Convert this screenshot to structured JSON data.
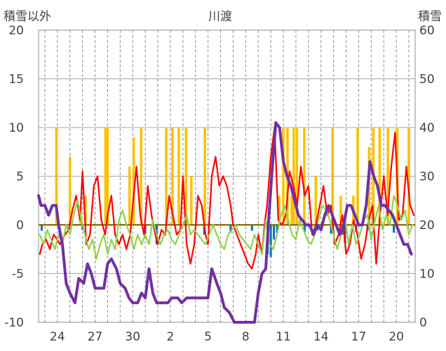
{
  "chart_data": {
    "type": "line",
    "title": "川渡",
    "y_left_label": "積雪以外",
    "y_right_label": "積雪",
    "y_left_ticks": [
      "20",
      "15",
      "10",
      "5",
      "0",
      "-5",
      "-10"
    ],
    "y_right_ticks": [
      "60",
      "50",
      "40",
      "30",
      "20",
      "10",
      "0"
    ],
    "x_ticks": [
      "24",
      "27",
      "30",
      "2",
      "5",
      "8",
      "11",
      "14",
      "17",
      "20"
    ],
    "ylim_left": [
      -10,
      20
    ],
    "ylim_right": [
      0,
      60
    ],
    "x_range_days": [
      22,
      52
    ],
    "x_tick_positions": [
      23.5,
      26.5,
      29.5,
      32.5,
      35.5,
      38.5,
      41.5,
      44.5,
      47.5,
      50.5
    ],
    "grid": true,
    "legend": "none",
    "colors": {
      "precipitation": "#FFC000",
      "temperature": "#FF0000",
      "wind": "#92D050",
      "sunshine": "#0070C0",
      "snow_depth": "#7030A0",
      "zero_line": "#7F6000"
    },
    "series": [
      {
        "key": "precipitation",
        "kind": "bar",
        "axis": "left",
        "x": [
          23.42,
          24.5,
          25.33,
          25.75,
          27.33,
          27.5,
          29.25,
          29.58,
          30.17,
          32.17,
          32.67,
          33.17,
          33.75,
          34.17,
          35.25,
          41.17,
          41.5,
          41.83,
          42.17,
          42.33,
          42.58,
          43.17,
          44.08,
          45.42,
          46.08,
          47.08,
          47.42,
          48.33,
          48.67,
          49.17,
          49.83,
          50.58,
          51.5
        ],
        "values": [
          10,
          7,
          2,
          3,
          10,
          10,
          6,
          9,
          10,
          10,
          10,
          10,
          10,
          5,
          10,
          3,
          10,
          10,
          3,
          10,
          10,
          10,
          5,
          10,
          3,
          3,
          10,
          8,
          10,
          10,
          10,
          10,
          10
        ]
      },
      {
        "key": "sunshine",
        "kind": "bar",
        "axis": "left",
        "x": [
          22.25,
          25.5,
          30.5,
          31.4,
          35.2,
          37.3,
          39.0,
          40.25,
          40.5,
          40.75,
          41.0,
          43.2,
          44.2,
          45.3,
          46.2,
          46.4,
          47.3,
          48.2,
          50.3
        ],
        "values": [
          -0.6,
          -0.5,
          -0.9,
          -2.0,
          -1.0,
          -0.8,
          -0.6,
          -3.0,
          -3.3,
          -1.5,
          -0.8,
          -0.7,
          -0.6,
          -0.9,
          -1.0,
          -1.8,
          -0.7,
          -0.6,
          -0.8
        ]
      },
      {
        "key": "temperature",
        "kind": "line",
        "axis": "left",
        "x": [
          22.1,
          22.3,
          22.6,
          22.9,
          23.2,
          23.5,
          23.7,
          23.9,
          24.1,
          24.4,
          24.7,
          25.0,
          25.3,
          25.5,
          25.8,
          26.1,
          26.4,
          26.7,
          27.0,
          27.3,
          27.5,
          27.8,
          28.1,
          28.4,
          28.7,
          29.0,
          29.3,
          29.5,
          29.8,
          30.1,
          30.4,
          30.7,
          31.0,
          31.3,
          31.5,
          31.8,
          32.1,
          32.4,
          32.7,
          33.0,
          33.3,
          33.5,
          33.8,
          34.1,
          34.4,
          34.7,
          35.0,
          35.3,
          35.5,
          35.8,
          36.1,
          36.4,
          36.7,
          37.0,
          37.3,
          37.5,
          37.8,
          38.1,
          38.4,
          38.7,
          39.0,
          39.3,
          39.5,
          39.8,
          40.0,
          40.2,
          40.5,
          40.8,
          41.1,
          41.4,
          41.7,
          42.0,
          42.3,
          42.6,
          42.9,
          43.2,
          43.5,
          43.8,
          44.1,
          44.4,
          44.7,
          45.0,
          45.3,
          45.6,
          45.9,
          46.2,
          46.5,
          46.8,
          47.1,
          47.4,
          47.7,
          48.0,
          48.3,
          48.6,
          48.9,
          49.2,
          49.5,
          49.8,
          50.1,
          50.4,
          50.7,
          51.0,
          51.3,
          51.6,
          51.9
        ],
        "values": [
          -3.0,
          -2.0,
          -1.5,
          -2.5,
          -1.0,
          -1.5,
          -2.0,
          -1.5,
          -1.0,
          -0.5,
          1.5,
          3.0,
          0.5,
          5.5,
          -2.0,
          -1.0,
          4.0,
          5.0,
          0.5,
          -1.0,
          1.0,
          3.0,
          -1.0,
          -2.0,
          -1.0,
          -2.5,
          -1.0,
          2.0,
          6.0,
          1.0,
          -1.0,
          4.0,
          1.0,
          -1.0,
          -2.0,
          -0.5,
          -1.0,
          3.0,
          1.0,
          -1.0,
          -0.5,
          5.0,
          -2.0,
          -4.0,
          -2.0,
          3.0,
          2.0,
          -1.0,
          -2.0,
          5.0,
          7.0,
          4.0,
          5.0,
          4.0,
          2.0,
          0.0,
          -1.0,
          -2.0,
          -3.0,
          -4.0,
          -4.5,
          -3.0,
          -1.0,
          -3.0,
          0.0,
          2.0,
          7.0,
          10.0,
          0.5,
          0.0,
          1.0,
          5.5,
          4.0,
          2.0,
          6.0,
          3.0,
          4.0,
          -1.0,
          0.0,
          2.0,
          4.0,
          1.0,
          2.0,
          -2.0,
          -1.0,
          1.0,
          -3.0,
          -2.0,
          0.5,
          -1.0,
          -3.5,
          -2.0,
          0.5,
          2.0,
          -4.0,
          1.0,
          5.0,
          1.0,
          6.0,
          9.5,
          0.5,
          1.0,
          6.0,
          2.0,
          1.0
        ]
      },
      {
        "key": "wind",
        "kind": "line",
        "axis": "left",
        "x": [
          22.1,
          22.4,
          22.7,
          23.0,
          23.3,
          23.6,
          23.9,
          24.2,
          24.5,
          24.8,
          25.1,
          25.4,
          25.7,
          26.0,
          26.3,
          26.6,
          26.9,
          27.2,
          27.5,
          27.8,
          28.1,
          28.4,
          28.7,
          29.0,
          29.3,
          29.6,
          29.9,
          30.2,
          30.5,
          30.8,
          31.1,
          31.4,
          31.7,
          32.0,
          32.3,
          32.6,
          32.9,
          33.2,
          33.5,
          33.8,
          34.1,
          34.4,
          34.7,
          35.0,
          35.3,
          35.6,
          35.9,
          36.2,
          36.5,
          36.8,
          37.1,
          37.4,
          37.7,
          38.0,
          38.3,
          38.6,
          38.9,
          39.2,
          39.5,
          39.8,
          40.1,
          40.4,
          40.7,
          41.0,
          41.3,
          41.6,
          41.9,
          42.2,
          42.5,
          42.8,
          43.1,
          43.4,
          43.7,
          44.0,
          44.3,
          44.6,
          44.9,
          45.2,
          45.5,
          45.8,
          46.1,
          46.4,
          46.7,
          47.0,
          47.3,
          47.6,
          47.9,
          48.2,
          48.5,
          48.8,
          49.1,
          49.4,
          49.7,
          50.0,
          50.3,
          50.6,
          50.9,
          51.2,
          51.5,
          51.8
        ],
        "values": [
          -1.0,
          -2.0,
          -0.5,
          -1.5,
          -2.5,
          -1.0,
          -2.0,
          0.0,
          -1.0,
          1.0,
          2.5,
          0.5,
          -1.0,
          -2.5,
          -1.5,
          -3.5,
          -2.0,
          -1.0,
          -3.0,
          -1.5,
          -2.5,
          0.5,
          1.5,
          0.0,
          -1.0,
          -2.5,
          -1.0,
          -2.0,
          -1.0,
          -2.0,
          0.5,
          -1.0,
          -2.0,
          -1.0,
          -0.5,
          -1.5,
          -2.0,
          -1.0,
          0.0,
          1.0,
          -1.0,
          -0.5,
          -1.0,
          -1.5,
          -2.0,
          -1.0,
          0.0,
          -1.0,
          -2.0,
          -2.5,
          -1.0,
          -0.5,
          0.0,
          -1.0,
          -1.5,
          -2.0,
          -2.5,
          -1.0,
          -2.0,
          -3.0,
          0.5,
          -2.0,
          -2.5,
          -1.0,
          1.0,
          2.0,
          0.5,
          -1.0,
          -1.5,
          0.5,
          -0.5,
          -1.5,
          -2.0,
          -1.0,
          0.5,
          2.0,
          1.5,
          0.5,
          -1.0,
          -2.5,
          -1.0,
          1.0,
          -2.0,
          0.0,
          -2.0,
          -1.0,
          0.5,
          1.0,
          -1.5,
          0.5,
          2.0,
          -0.5,
          1.0,
          0.0,
          3.0,
          2.0,
          0.5,
          1.5,
          -1.0,
          0.0
        ]
      },
      {
        "key": "snow_depth",
        "kind": "line",
        "axis": "right",
        "x": [
          22.0,
          22.2,
          22.5,
          22.8,
          23.1,
          23.4,
          23.6,
          23.9,
          24.2,
          24.5,
          24.9,
          25.2,
          25.6,
          25.9,
          26.2,
          26.5,
          26.9,
          27.2,
          27.5,
          27.8,
          28.2,
          28.5,
          28.9,
          29.2,
          29.5,
          29.9,
          30.2,
          30.5,
          30.8,
          31.1,
          31.4,
          31.7,
          32.0,
          32.3,
          32.6,
          32.9,
          33.1,
          33.4,
          33.8,
          34.1,
          34.5,
          34.8,
          35.2,
          35.5,
          35.8,
          36.2,
          36.5,
          36.8,
          37.2,
          37.6,
          38.0,
          38.5,
          38.9,
          39.2,
          39.5,
          39.8,
          40.1,
          40.3,
          40.6,
          40.9,
          41.2,
          41.5,
          41.8,
          42.1,
          42.4,
          42.7,
          43.0,
          43.3,
          43.6,
          43.9,
          44.2,
          44.5,
          44.8,
          45.1,
          45.4,
          45.7,
          46.0,
          46.3,
          46.6,
          46.9,
          47.2,
          47.5,
          47.8,
          48.1,
          48.4,
          48.7,
          49.0,
          49.3,
          49.6,
          49.9,
          50.2,
          50.5,
          50.8,
          51.1,
          51.4,
          51.7
        ],
        "values": [
          26.0,
          24.0,
          24.0,
          22.0,
          24.0,
          24.0,
          20.0,
          16.0,
          8.0,
          6.0,
          4.0,
          9.0,
          8.0,
          12.0,
          10.0,
          7.0,
          7.0,
          7.0,
          12.0,
          13.0,
          11.0,
          8.0,
          7.0,
          5.0,
          4.0,
          4.0,
          6.0,
          5.0,
          11.0,
          6.0,
          4.0,
          4.0,
          4.0,
          4.0,
          5.0,
          5.0,
          5.0,
          4.0,
          5.0,
          5.0,
          5.0,
          5.0,
          5.0,
          5.0,
          11.0,
          8.0,
          6.0,
          3.0,
          2.0,
          0.0,
          0.0,
          0.0,
          0.0,
          0.0,
          6.0,
          10.0,
          11.0,
          20.0,
          31.0,
          41.0,
          40.0,
          33.0,
          30.0,
          28.0,
          25.0,
          22.0,
          21.0,
          20.0,
          20.0,
          18.0,
          20.0,
          19.0,
          22.0,
          24.0,
          22.0,
          20.0,
          18.0,
          20.0,
          24.0,
          24.0,
          22.0,
          20.0,
          20.0,
          24.0,
          33.0,
          30.0,
          28.0,
          24.0,
          24.0,
          23.0,
          22.0,
          20.0,
          18.0,
          16.0,
          16.0,
          14.0
        ]
      }
    ]
  }
}
